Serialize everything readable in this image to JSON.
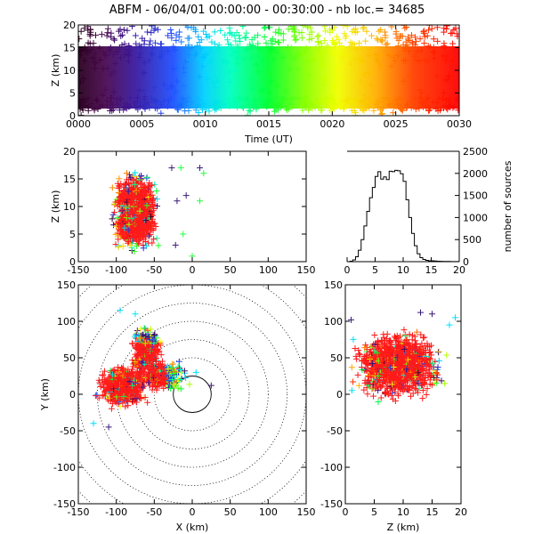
{
  "header": {
    "title_label": "ABFM",
    "date": "06/04/01",
    "time_range": "00:00:00 - 00:30:00",
    "count_label": "nb loc.=",
    "count": "34685"
  },
  "colors": {
    "time_scale": [
      "#3a0030",
      "#3a1a7a",
      "#2040ff",
      "#00ffff",
      "#00ff40",
      "#f0ff00",
      "#ff6000",
      "#ff0000"
    ],
    "high_density": "#ff1a1a",
    "histogram": "#000000"
  },
  "chart_data": [
    {
      "id": "time_height",
      "type": "scatter",
      "marker": "plus",
      "xlabel": "Time (UT)",
      "ylabel": "Z (km)",
      "xticks": [
        "0000",
        "0005",
        "0010",
        "0015",
        "0020",
        "0025",
        "0030"
      ],
      "xlim_minutes": [
        0,
        30
      ],
      "yticks": [
        "0",
        "5",
        "10",
        "15",
        "20"
      ],
      "ylim": [
        0,
        20
      ],
      "color_by": "time",
      "description_range": {
        "z_core": [
          3,
          13
        ],
        "z_spread": [
          0,
          20
        ]
      }
    },
    {
      "id": "x_z",
      "type": "scatter",
      "marker": "plus",
      "xlabel": "",
      "ylabel": "Z (km)",
      "xticks": [
        "-150",
        "-100",
        "-50",
        "0",
        "50",
        "100",
        "150"
      ],
      "xlim": [
        -150,
        150
      ],
      "yticks": [
        "0",
        "5",
        "10",
        "15",
        "20"
      ],
      "ylim": [
        0,
        20
      ],
      "color_by": "time",
      "cluster": {
        "x_range": [
          -120,
          -30
        ],
        "z_range": [
          0,
          20
        ]
      }
    },
    {
      "id": "height_histogram",
      "type": "line",
      "step": true,
      "xlabel": "",
      "ylabel": "number of sources",
      "xticks": [
        "0",
        "5",
        "10",
        "15",
        "20"
      ],
      "xlim": [
        0,
        20
      ],
      "yticks": [
        "0",
        "500",
        "1000",
        "1500",
        "2000",
        "2500"
      ],
      "ylim": [
        0,
        2500
      ],
      "x": [
        0,
        0.5,
        1,
        1.5,
        2,
        2.5,
        3,
        3.5,
        4,
        4.5,
        5,
        5.5,
        6,
        6.5,
        7,
        7.5,
        8,
        8.5,
        9,
        9.5,
        10,
        10.5,
        11,
        11.5,
        12,
        12.5,
        13,
        13.5,
        14,
        14.5,
        15,
        15.5,
        16,
        16.5,
        17,
        17.5,
        18,
        18.5,
        19,
        19.5
      ],
      "y": [
        0,
        10,
        40,
        110,
        260,
        500,
        810,
        1140,
        1450,
        1680,
        1930,
        2040,
        1870,
        1920,
        1860,
        2050,
        2040,
        2070,
        2060,
        1990,
        1820,
        1400,
        1000,
        640,
        360,
        180,
        90,
        50,
        30,
        20,
        20,
        15,
        10,
        8,
        6,
        5,
        4,
        3,
        2,
        2
      ]
    },
    {
      "id": "x_y_plan",
      "type": "scatter",
      "marker": "plus",
      "xlabel": "X (km)",
      "ylabel": "Y (km)",
      "xticks": [
        "-150",
        "-100",
        "-50",
        "0",
        "50",
        "100",
        "150"
      ],
      "xlim": [
        -150,
        150
      ],
      "yticks": [
        "-150",
        "-100",
        "-50",
        "0",
        "50",
        "100",
        "150"
      ],
      "ylim": [
        -150,
        150
      ],
      "color_by": "time",
      "range_rings_km": [
        25,
        50,
        75,
        100,
        125,
        150,
        175,
        200
      ],
      "solid_ring_km": 25,
      "cluster": {
        "x_range": [
          -145,
          25
        ],
        "y_range": [
          -50,
          120
        ]
      }
    },
    {
      "id": "z_y",
      "type": "scatter",
      "marker": "plus",
      "xlabel": "Z (km)",
      "ylabel": "",
      "xticks": [
        "0",
        "5",
        "10",
        "15",
        "20"
      ],
      "xlim": [
        0,
        20
      ],
      "yticks": [
        "-150",
        "-100",
        "-50",
        "0",
        "50",
        "100",
        "150"
      ],
      "ylim": [
        -150,
        150
      ],
      "color_by": "time",
      "cluster": {
        "z_range": [
          0,
          20
        ],
        "y_range": [
          -50,
          120
        ]
      }
    }
  ]
}
